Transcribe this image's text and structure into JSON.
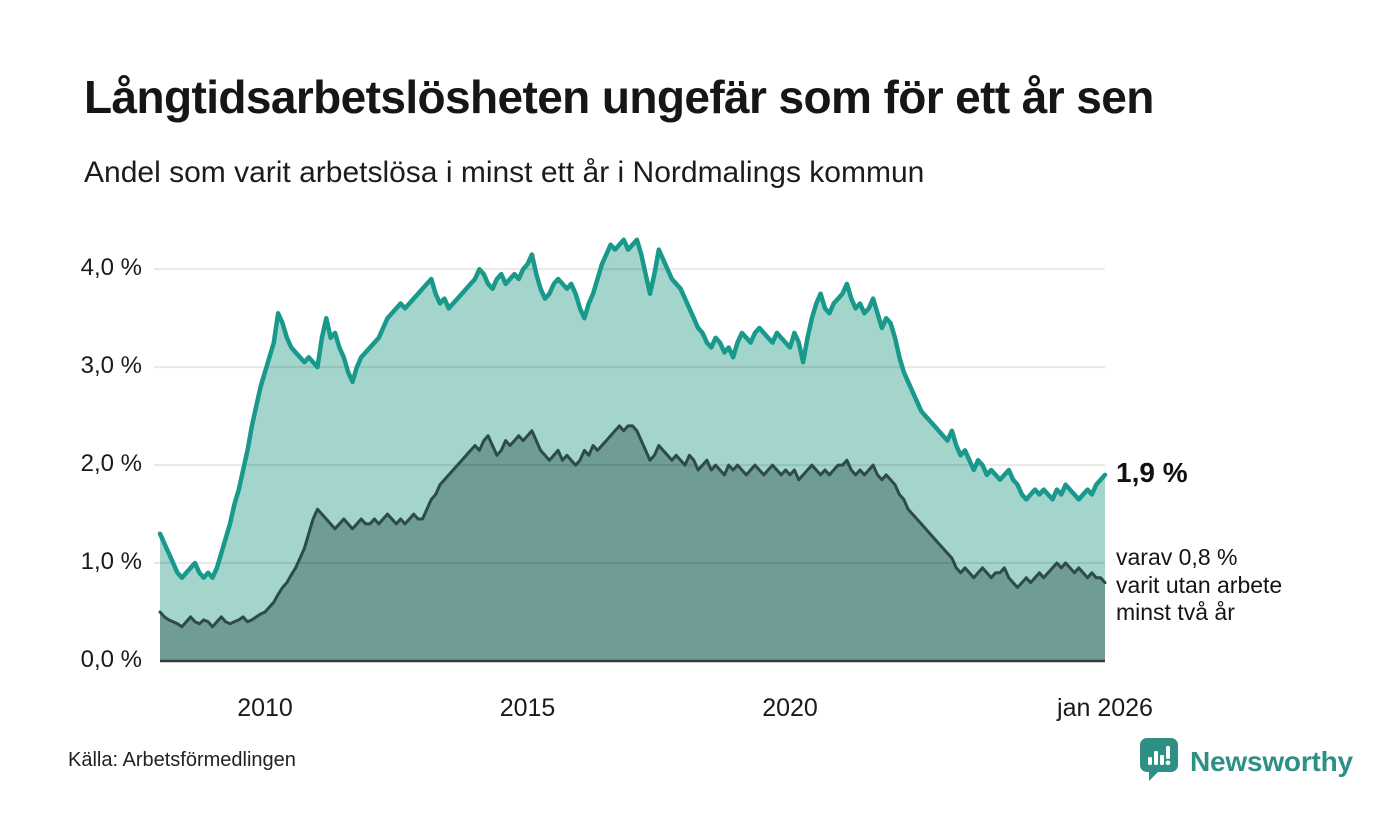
{
  "header": {
    "note": "title and subtitle live in chart_data"
  },
  "annotations": {
    "latest_total": "1,9 %",
    "two_year_note": "varav 0,8 %\nvarit utan arbete\nminst två år"
  },
  "footer": {
    "source": "Källa: Arbetsförmedlingen",
    "brand": "Newsworthy",
    "brand_color": "#2e8f85",
    "brand_icon": "speech-bubble-bar-chart"
  },
  "chart_data": {
    "type": "area",
    "title": "Långtidsarbetslösheten ungefär som för ett år sen",
    "subtitle": "Andel som varit arbetslösa i minst ett år i Nordmalings kommun",
    "unit": "%",
    "x_start_year": 2008,
    "x_interval_months": 1,
    "xlim": [
      2008,
      2026.0
    ],
    "ylim": [
      0,
      4.4
    ],
    "grid": true,
    "legend_position": "annotations-right",
    "axis_line_color": "#3b3b3b",
    "grid_color": "rgba(0,0,0,0.09)",
    "yticks": [
      {
        "value": 0,
        "label": "0,0 %"
      },
      {
        "value": 1,
        "label": "1,0 %"
      },
      {
        "value": 2,
        "label": "2,0 %"
      },
      {
        "value": 3,
        "label": "3,0 %"
      },
      {
        "value": 4,
        "label": "4,0 %"
      }
    ],
    "xticks": [
      {
        "value": 2010,
        "label": "2010"
      },
      {
        "value": 2015,
        "label": "2015"
      },
      {
        "value": 2020,
        "label": "2020"
      },
      {
        "value": 2026,
        "label": "jan 2026"
      }
    ],
    "end_labels": {
      "total": "1,9 %",
      "two_year": "0,8 %"
    },
    "series": [
      {
        "name": "Andel som varit arbetslösa i minst ett år",
        "color": "#18998b",
        "fill": "#a3d5cd",
        "line_width": 4.5,
        "values": [
          1.3,
          1.2,
          1.1,
          1.0,
          0.9,
          0.85,
          0.9,
          0.95,
          1.0,
          0.9,
          0.85,
          0.9,
          0.85,
          0.95,
          1.1,
          1.25,
          1.4,
          1.6,
          1.75,
          1.95,
          2.15,
          2.4,
          2.6,
          2.8,
          2.95,
          3.1,
          3.25,
          3.55,
          3.45,
          3.3,
          3.2,
          3.15,
          3.1,
          3.05,
          3.1,
          3.05,
          3.0,
          3.3,
          3.5,
          3.3,
          3.35,
          3.2,
          3.1,
          2.95,
          2.85,
          3.0,
          3.1,
          3.15,
          3.2,
          3.25,
          3.3,
          3.4,
          3.5,
          3.55,
          3.6,
          3.65,
          3.6,
          3.65,
          3.7,
          3.75,
          3.8,
          3.85,
          3.9,
          3.75,
          3.65,
          3.7,
          3.6,
          3.65,
          3.7,
          3.75,
          3.8,
          3.85,
          3.9,
          4.0,
          3.95,
          3.85,
          3.8,
          3.9,
          3.95,
          3.85,
          3.9,
          3.95,
          3.9,
          4.0,
          4.05,
          4.15,
          3.95,
          3.8,
          3.7,
          3.75,
          3.85,
          3.9,
          3.85,
          3.8,
          3.85,
          3.75,
          3.6,
          3.5,
          3.65,
          3.75,
          3.9,
          4.05,
          4.15,
          4.25,
          4.2,
          4.25,
          4.3,
          4.2,
          4.25,
          4.3,
          4.15,
          3.95,
          3.75,
          3.95,
          4.2,
          4.1,
          4.0,
          3.9,
          3.85,
          3.8,
          3.7,
          3.6,
          3.5,
          3.4,
          3.35,
          3.25,
          3.2,
          3.3,
          3.25,
          3.15,
          3.2,
          3.1,
          3.25,
          3.35,
          3.3,
          3.25,
          3.35,
          3.4,
          3.35,
          3.3,
          3.25,
          3.35,
          3.3,
          3.25,
          3.2,
          3.35,
          3.25,
          3.05,
          3.3,
          3.5,
          3.65,
          3.75,
          3.6,
          3.55,
          3.65,
          3.7,
          3.75,
          3.85,
          3.7,
          3.6,
          3.65,
          3.55,
          3.6,
          3.7,
          3.55,
          3.4,
          3.5,
          3.45,
          3.3,
          3.1,
          2.95,
          2.85,
          2.75,
          2.65,
          2.55,
          2.5,
          2.45,
          2.4,
          2.35,
          2.3,
          2.25,
          2.35,
          2.2,
          2.1,
          2.15,
          2.05,
          1.95,
          2.05,
          2.0,
          1.9,
          1.95,
          1.9,
          1.85,
          1.9,
          1.95,
          1.85,
          1.8,
          1.7,
          1.65,
          1.7,
          1.75,
          1.7,
          1.75,
          1.7,
          1.65,
          1.75,
          1.7,
          1.8,
          1.75,
          1.7,
          1.65,
          1.7,
          1.75,
          1.7,
          1.8,
          1.85,
          1.9
        ]
      },
      {
        "name": "varav utan arbete minst två år",
        "color": "#2e4b45",
        "fill": "#6f9c95",
        "line_width": 3,
        "values": [
          0.5,
          0.45,
          0.42,
          0.4,
          0.38,
          0.35,
          0.4,
          0.45,
          0.4,
          0.38,
          0.42,
          0.4,
          0.35,
          0.4,
          0.45,
          0.4,
          0.38,
          0.4,
          0.42,
          0.45,
          0.4,
          0.42,
          0.45,
          0.48,
          0.5,
          0.55,
          0.6,
          0.68,
          0.75,
          0.8,
          0.88,
          0.95,
          1.05,
          1.15,
          1.3,
          1.45,
          1.55,
          1.5,
          1.45,
          1.4,
          1.35,
          1.4,
          1.45,
          1.4,
          1.35,
          1.4,
          1.45,
          1.4,
          1.4,
          1.45,
          1.4,
          1.45,
          1.5,
          1.45,
          1.4,
          1.45,
          1.4,
          1.45,
          1.5,
          1.45,
          1.45,
          1.55,
          1.65,
          1.7,
          1.8,
          1.85,
          1.9,
          1.95,
          2.0,
          2.05,
          2.1,
          2.15,
          2.2,
          2.15,
          2.25,
          2.3,
          2.2,
          2.1,
          2.15,
          2.25,
          2.2,
          2.25,
          2.3,
          2.25,
          2.3,
          2.35,
          2.25,
          2.15,
          2.1,
          2.05,
          2.1,
          2.15,
          2.05,
          2.1,
          2.05,
          2.0,
          2.05,
          2.15,
          2.1,
          2.2,
          2.15,
          2.2,
          2.25,
          2.3,
          2.35,
          2.4,
          2.35,
          2.4,
          2.4,
          2.35,
          2.25,
          2.15,
          2.05,
          2.1,
          2.2,
          2.15,
          2.1,
          2.05,
          2.1,
          2.05,
          2.0,
          2.1,
          2.05,
          1.95,
          2.0,
          2.05,
          1.95,
          2.0,
          1.95,
          1.9,
          2.0,
          1.95,
          2.0,
          1.95,
          1.9,
          1.95,
          2.0,
          1.95,
          1.9,
          1.95,
          2.0,
          1.95,
          1.9,
          1.95,
          1.9,
          1.95,
          1.85,
          1.9,
          1.95,
          2.0,
          1.95,
          1.9,
          1.95,
          1.9,
          1.95,
          2.0,
          2.0,
          2.05,
          1.95,
          1.9,
          1.95,
          1.9,
          1.95,
          2.0,
          1.9,
          1.85,
          1.9,
          1.85,
          1.8,
          1.7,
          1.65,
          1.55,
          1.5,
          1.45,
          1.4,
          1.35,
          1.3,
          1.25,
          1.2,
          1.15,
          1.1,
          1.05,
          0.95,
          0.9,
          0.95,
          0.9,
          0.85,
          0.9,
          0.95,
          0.9,
          0.85,
          0.9,
          0.9,
          0.95,
          0.85,
          0.8,
          0.75,
          0.8,
          0.85,
          0.8,
          0.85,
          0.9,
          0.85,
          0.9,
          0.95,
          1.0,
          0.95,
          1.0,
          0.95,
          0.9,
          0.95,
          0.9,
          0.85,
          0.9,
          0.85,
          0.85,
          0.8
        ]
      }
    ]
  }
}
